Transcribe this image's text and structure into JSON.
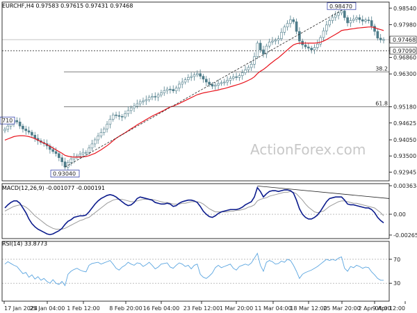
{
  "chart_data": [
    {
      "type": "candlestick",
      "title": "EURCHF,H4 0.97583 0.97615 0.97431 0.97468",
      "ylim": [
        0.9265,
        0.9875
      ],
      "y_ticks": [
        "0.98540",
        "0.97980",
        "0.96860",
        "0.96300",
        "0.95180",
        "0.94625",
        "0.94050",
        "0.93500",
        "0.92945"
      ],
      "y_tick_values": [
        0.9854,
        0.9798,
        0.9686,
        0.963,
        0.9518,
        0.94625,
        0.9405,
        0.935,
        0.92945
      ],
      "price_label": "0.97468",
      "price_value": 0.97468,
      "level_label": "0.97090",
      "level_value": 0.9709,
      "fib_levels": [
        {
          "label": "38.2",
          "value": 0.9637
        },
        {
          "label": "61.8",
          "value": 0.9518
        }
      ],
      "annotations": [
        {
          "label": "0.98470",
          "value": 0.9847,
          "x_index": 112
        },
        {
          "label": "0.93040",
          "value": 0.9304,
          "x_index": 20
        },
        {
          "label": "710",
          "value": 0.9471,
          "x_index": 0
        }
      ],
      "series": [
        {
          "values": [
            0.9441,
            0.9452,
            0.9463,
            0.9471,
            0.9466,
            0.9452,
            0.9442,
            0.9436,
            0.9431,
            0.9421,
            0.941,
            0.9402,
            0.9396,
            0.9392,
            0.9384,
            0.9372,
            0.9365,
            0.9358,
            0.9344,
            0.933,
            0.9312,
            0.9328,
            0.9339,
            0.9346,
            0.935,
            0.9356,
            0.9362,
            0.9362,
            0.9377,
            0.9391,
            0.9405,
            0.9418,
            0.943,
            0.9442,
            0.9458,
            0.9475,
            0.949,
            0.9488,
            0.9485,
            0.9483,
            0.9494,
            0.9505,
            0.9514,
            0.952,
            0.9528,
            0.9535,
            0.9538,
            0.9542,
            0.955,
            0.9553,
            0.9551,
            0.9558,
            0.9565,
            0.9573,
            0.9578,
            0.9577,
            0.9572,
            0.9582,
            0.9595,
            0.9602,
            0.961,
            0.9618,
            0.9621,
            0.9627,
            0.9631,
            0.9622,
            0.9612,
            0.9602,
            0.9594,
            0.9588,
            0.9591,
            0.9597,
            0.96,
            0.9602,
            0.9608,
            0.9615,
            0.962,
            0.9618,
            0.9624,
            0.9634,
            0.9644,
            0.9652,
            0.9663,
            0.9689,
            0.9735,
            0.9712,
            0.9698,
            0.9725,
            0.9739,
            0.9742,
            0.9745,
            0.975,
            0.9772,
            0.979,
            0.9802,
            0.9815,
            0.9808,
            0.9775,
            0.9742,
            0.9729,
            0.9722,
            0.9718,
            0.9712,
            0.972,
            0.9732,
            0.9754,
            0.9777,
            0.9797,
            0.9812,
            0.9823,
            0.983,
            0.9838,
            0.9845,
            0.9822,
            0.9804,
            0.9812,
            0.9817,
            0.9822,
            0.9815,
            0.981,
            0.9814,
            0.9812,
            0.9793,
            0.9775,
            0.9752,
            0.9746,
            0.9747
          ]
        },
        {
          "values": [
            0.9404,
            0.9408,
            0.9412,
            0.9416,
            0.9418,
            0.9419,
            0.9419,
            0.9418,
            0.9416,
            0.9413,
            0.9409,
            0.9404,
            0.9399,
            0.9394,
            0.9389,
            0.9383,
            0.9377,
            0.9371,
            0.9365,
            0.9359,
            0.9352,
            0.9349,
            0.9347,
            0.9346,
            0.9346,
            0.9346,
            0.9347,
            0.9348,
            0.9351,
            0.9355,
            0.9359,
            0.9365,
            0.9371,
            0.9378,
            0.9385,
            0.9393,
            0.9402,
            0.941,
            0.9417,
            0.9423,
            0.9429,
            0.9436,
            0.9443,
            0.9449,
            0.9456,
            0.9462,
            0.9468,
            0.9474,
            0.948,
            0.9486,
            0.9491,
            0.9496,
            0.9501,
            0.9506,
            0.9512,
            0.9517,
            0.952,
            0.9524,
            0.9529,
            0.9534,
            0.9539,
            0.9544,
            0.9549,
            0.9554,
            0.9559,
            0.9562,
            0.9565,
            0.9567,
            0.9569,
            0.9571,
            0.9573,
            0.9575,
            0.9578,
            0.958,
            0.9583,
            0.9586,
            0.9589,
            0.9592,
            0.9595,
            0.9599,
            0.9603,
            0.9608,
            0.9613,
            0.962,
            0.9631,
            0.9639,
            0.9645,
            0.9653,
            0.9662,
            0.967,
            0.9678,
            0.9685,
            0.9694,
            0.9703,
            0.9712,
            0.9721,
            0.9729,
            0.9733,
            0.9735,
            0.9735,
            0.9735,
            0.9735,
            0.9735,
            0.9735,
            0.9736,
            0.9738,
            0.9742,
            0.9747,
            0.9753,
            0.9759,
            0.9765,
            0.9771,
            0.9778,
            0.978,
            0.9781,
            0.9783,
            0.9784,
            0.9786,
            0.9787,
            0.9788,
            0.9789,
            0.979,
            0.979,
            0.9788,
            0.9784,
            0.9781,
            0.9778
          ]
        }
      ],
      "trend_line": {
        "from_index": 20,
        "from_value": 0.9312,
        "to_index": 112,
        "to_value": 0.9847
      }
    },
    {
      "type": "line",
      "title": "MACD(12,26,9) -0.001077 -0.000191",
      "ylim": [
        -0.0031,
        0.0039
      ],
      "y_ticks": [
        "0.003634",
        "0.00",
        "-0.002652"
      ],
      "y_tick_values": [
        0.003634,
        0.0,
        -0.002652
      ],
      "series": [
        {
          "values": [
            0.0008,
            0.0012,
            0.0015,
            0.0017,
            0.0017,
            0.0014,
            0.0008,
            0.0002,
            -0.0006,
            -0.0012,
            -0.0016,
            -0.0019,
            -0.0021,
            -0.0023,
            -0.0025,
            -0.0026,
            -0.0025,
            -0.0023,
            -0.0021,
            -0.0018,
            -0.0013,
            -0.0009,
            -0.0007,
            -0.0004,
            -0.0003,
            -0.0002,
            -0.0002,
            -0.0001,
            0.0003,
            0.0008,
            0.0013,
            0.0017,
            0.002,
            0.0022,
            0.0024,
            0.0025,
            0.0024,
            0.0022,
            0.0019,
            0.0016,
            0.0013,
            0.0011,
            0.0012,
            0.0015,
            0.002,
            0.0022,
            0.0021,
            0.002,
            0.0019,
            0.0018,
            0.0015,
            0.0014,
            0.0013,
            0.0013,
            0.0014,
            0.0013,
            0.001,
            0.0011,
            0.0014,
            0.0016,
            0.0017,
            0.0018,
            0.0018,
            0.0017,
            0.0015,
            0.001,
            0.0004,
            0.0,
            -0.0003,
            -0.0004,
            -0.0002,
            0.0001,
            0.0003,
            0.0004,
            0.0005,
            0.0006,
            0.0006,
            0.0006,
            0.0007,
            0.0009,
            0.0012,
            0.0014,
            0.0016,
            0.0022,
            0.0034,
            0.0029,
            0.0022,
            0.0026,
            0.0029,
            0.003,
            0.003,
            0.0029,
            0.003,
            0.0031,
            0.0031,
            0.003,
            0.0027,
            0.0018,
            0.0007,
            0.0,
            -0.0004,
            -0.0006,
            -0.0006,
            -0.0004,
            -0.0001,
            0.0004,
            0.001,
            0.0016,
            0.002,
            0.0021,
            0.0022,
            0.0022,
            0.0022,
            0.0018,
            0.0013,
            0.0012,
            0.0012,
            0.0011,
            0.001,
            0.0009,
            0.0008,
            0.0008,
            0.0006,
            0.0002,
            -0.0004,
            -0.0008,
            -0.0011
          ]
        },
        {
          "values": [
            0.0004,
            0.0006,
            0.0008,
            0.001,
            0.0011,
            0.0012,
            0.0011,
            0.0009,
            0.0006,
            0.0002,
            -0.0002,
            -0.0005,
            -0.0008,
            -0.0011,
            -0.0014,
            -0.0016,
            -0.0018,
            -0.0019,
            -0.0019,
            -0.0019,
            -0.0018,
            -0.0016,
            -0.0014,
            -0.0012,
            -0.001,
            -0.0008,
            -0.0007,
            -0.0005,
            -0.0004,
            -0.0001,
            0.0002,
            0.0005,
            0.0008,
            0.0011,
            0.0014,
            0.0016,
            0.0018,
            0.0019,
            0.0019,
            0.0019,
            0.0018,
            0.0017,
            0.0016,
            0.0016,
            0.0017,
            0.0018,
            0.0019,
            0.0019,
            0.0019,
            0.0019,
            0.0018,
            0.0017,
            0.0016,
            0.0015,
            0.0015,
            0.0014,
            0.0013,
            0.0013,
            0.0013,
            0.0014,
            0.0014,
            0.0015,
            0.0016,
            0.0016,
            0.0016,
            0.0015,
            0.0013,
            0.001,
            0.0007,
            0.0005,
            0.0003,
            0.0003,
            0.0003,
            0.0003,
            0.0003,
            0.0004,
            0.0004,
            0.0005,
            0.0005,
            0.0006,
            0.0007,
            0.0009,
            0.001,
            0.0012,
            0.0017,
            0.0019,
            0.002,
            0.0021,
            0.0023,
            0.0024,
            0.0025,
            0.0026,
            0.0027,
            0.0028,
            0.0028,
            0.0029,
            0.0028,
            0.0026,
            0.0022,
            0.0018,
            0.0013,
            0.0009,
            0.0006,
            0.0003,
            0.0002,
            0.0003,
            0.0004,
            0.0007,
            0.001,
            0.0012,
            0.0014,
            0.0016,
            0.0017,
            0.0017,
            0.0016,
            0.0015,
            0.0014,
            0.0014,
            0.0013,
            0.0012,
            0.0011,
            0.001,
            0.0009,
            0.0008,
            0.0005,
            0.0002,
            -0.0002
          ]
        }
      ],
      "trend_line": {
        "from_index": 84,
        "from_value": 0.0036,
        "to_index": 128,
        "to_value": 0.002
      }
    },
    {
      "type": "line",
      "title": "RSI(14) 33.8773",
      "ylim": [
        0,
        100
      ],
      "y_ticks": [
        "70",
        "30"
      ],
      "y_tick_values": [
        70,
        30
      ],
      "series": [
        {
          "values": [
            62,
            66,
            63,
            60,
            58,
            52,
            46,
            48,
            40,
            44,
            37,
            41,
            35,
            38,
            33,
            30,
            36,
            30,
            28,
            33,
            26,
            45,
            50,
            53,
            55,
            52,
            50,
            49,
            60,
            63,
            64,
            65,
            62,
            64,
            66,
            68,
            62,
            55,
            52,
            57,
            60,
            65,
            62,
            60,
            64,
            63,
            58,
            61,
            65,
            60,
            54,
            57,
            62,
            63,
            64,
            57,
            55,
            60,
            64,
            62,
            58,
            60,
            54,
            60,
            62,
            45,
            40,
            38,
            42,
            47,
            56,
            60,
            56,
            58,
            60,
            62,
            55,
            52,
            58,
            60,
            62,
            60,
            64,
            72,
            80,
            60,
            50,
            65,
            68,
            66,
            62,
            63,
            67,
            65,
            70,
            68,
            60,
            50,
            38,
            45,
            48,
            50,
            52,
            55,
            58,
            62,
            66,
            70,
            68,
            70,
            68,
            72,
            74,
            55,
            50,
            58,
            56,
            60,
            58,
            55,
            57,
            56,
            49,
            44,
            38,
            35,
            35
          ]
        }
      ]
    }
  ],
  "x_ticks": [
    "17 Jan 2024",
    "25 Jan 04:00",
    "1 Feb 12:00",
    "8 Feb 20:00",
    "16 Feb 04:00",
    "23 Feb 12:00",
    "1 Mar 20:00",
    "11 Mar 04:00",
    "18 Mar 12:00",
    "25 Mar 20:00",
    "2 Apr 04:00",
    "9 Apr 12:00"
  ],
  "watermark": "ActionForex.com",
  "colors": {
    "candles": "#4f7d8a",
    "ma": "#e8131c",
    "macd": "#0a1a8c",
    "signal": "#9a9a9a",
    "rsi": "#5aa5e0",
    "grid": "#999999"
  }
}
